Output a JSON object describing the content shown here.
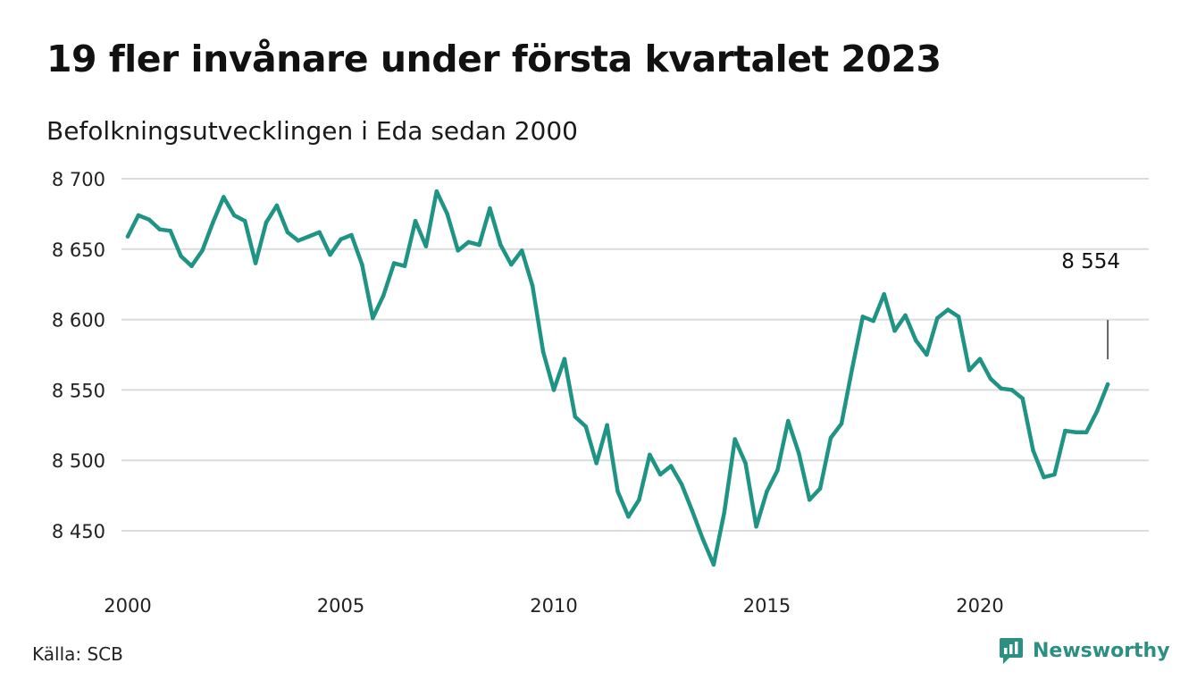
{
  "header": {
    "title": "19 fler invånare under första kvartalet 2023",
    "subtitle": "Befolkningsutvecklingen i Eda sedan 2000"
  },
  "footer": {
    "source": "Källa: SCB",
    "brand": "Newsworthy",
    "brand_icon": "bar-chart-logo-icon"
  },
  "colors": {
    "line": "#1f9484",
    "grid": "#dcdcdc",
    "brand": "#2b8f82"
  },
  "chart_data": {
    "type": "line",
    "title": "19 fler invånare under första kvartalet 2023",
    "subtitle": "Befolkningsutvecklingen i Eda sedan 2000",
    "xlabel": "",
    "ylabel": "",
    "xlim": [
      2000,
      2023.25
    ],
    "ylim": [
      8420,
      8700
    ],
    "grid": true,
    "x_ticks": [
      2000,
      2005,
      2010,
      2015,
      2020
    ],
    "x_tick_labels": [
      "2000",
      "2005",
      "2010",
      "2015",
      "2020"
    ],
    "y_ticks": [
      8450,
      8500,
      8550,
      8600,
      8650,
      8700
    ],
    "y_tick_labels": [
      "8 450",
      "8 500",
      "8 550",
      "8 600",
      "8 650",
      "8 700"
    ],
    "annotation": {
      "x": 2023,
      "y": 8554,
      "label": "8 554"
    },
    "series": [
      {
        "x": [
          2000,
          2000.25,
          2000.5,
          2000.75,
          2001,
          2001.25,
          2001.5,
          2001.75,
          2002,
          2002.25,
          2002.5,
          2002.75,
          2003,
          2003.25,
          2003.5,
          2003.75,
          2004,
          2004.25,
          2004.5,
          2004.75,
          2005,
          2005.25,
          2005.5,
          2005.75,
          2006,
          2006.25,
          2006.5,
          2006.75,
          2007,
          2007.25,
          2007.5,
          2007.75,
          2008,
          2008.25,
          2008.5,
          2008.75,
          2009,
          2009.25,
          2009.5,
          2009.75,
          2010,
          2010.25,
          2010.5,
          2010.75,
          2011,
          2011.25,
          2011.5,
          2011.75,
          2012,
          2012.25,
          2012.5,
          2012.75,
          2013,
          2013.25,
          2013.5,
          2013.75,
          2014,
          2014.25,
          2014.5,
          2014.75,
          2015,
          2015.25,
          2015.5,
          2015.75,
          2016,
          2016.25,
          2016.5,
          2016.75,
          2017,
          2017.25,
          2017.5,
          2017.75,
          2018,
          2018.25,
          2018.5,
          2018.75,
          2019,
          2019.25,
          2019.5,
          2019.75,
          2020,
          2020.25,
          2020.5,
          2020.75,
          2021,
          2021.25,
          2021.5,
          2021.75,
          2022,
          2022.25,
          2022.5,
          2022.75,
          2023
        ],
        "values": [
          8659,
          8674,
          8671,
          8664,
          8663,
          8645,
          8638,
          8649,
          8669,
          8687,
          8674,
          8670,
          8640,
          8669,
          8681,
          8662,
          8656,
          8659,
          8662,
          8646,
          8657,
          8660,
          8639,
          8601,
          8617,
          8640,
          8638,
          8670,
          8652,
          8691,
          8675,
          8649,
          8655,
          8653,
          8679,
          8653,
          8639,
          8649,
          8624,
          8577,
          8550,
          8572,
          8531,
          8524,
          8498,
          8525,
          8478,
          8460,
          8472,
          8504,
          8490,
          8496,
          8483,
          8464,
          8444,
          8426,
          8463,
          8515,
          8498,
          8453,
          8478,
          8493,
          8528,
          8505,
          8472,
          8480,
          8516,
          8526,
          8565,
          8602,
          8599,
          8618,
          8592,
          8603,
          8585,
          8575,
          8601,
          8607,
          8602,
          8564,
          8572,
          8558,
          8551,
          8550,
          8544,
          8507,
          8488,
          8490,
          8521,
          8520,
          8520,
          8535,
          8554
        ]
      }
    ]
  }
}
